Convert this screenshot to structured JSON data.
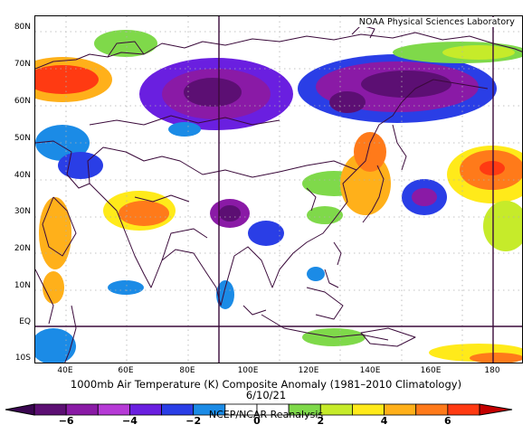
{
  "credit": "NOAA Physical Sciences Laboratory",
  "title": "1000mb Air Temperature (K) Composite Anomaly (1981–2010 Climatology)",
  "date": "6/10/21",
  "source": "NCEP/NCAR Reanalysis",
  "lat_labels": [
    "80N",
    "70N",
    "60N",
    "50N",
    "40N",
    "30N",
    "20N",
    "10N",
    "EQ",
    "10S"
  ],
  "lon_labels": [
    "40E",
    "60E",
    "80E",
    "100E",
    "120E",
    "140E",
    "160E",
    "180"
  ],
  "colorbar": {
    "tick_labels": [
      "−6",
      "−4",
      "−2",
      "0",
      "2",
      "4",
      "6"
    ],
    "colors": [
      "#5c0f73",
      "#8a1aa6",
      "#b63ad6",
      "#6a1fe0",
      "#2a3ee6",
      "#1b8be6",
      "#ffffff",
      "#ffffff",
      "#7fd94a",
      "#c6eb2a",
      "#ffea1a",
      "#ffb01a",
      "#ff7a1a",
      "#ff3a12"
    ]
  },
  "map_extent": {
    "lon_min": 30,
    "lon_max": 190,
    "lat_min": -10,
    "lat_max": 85
  }
}
